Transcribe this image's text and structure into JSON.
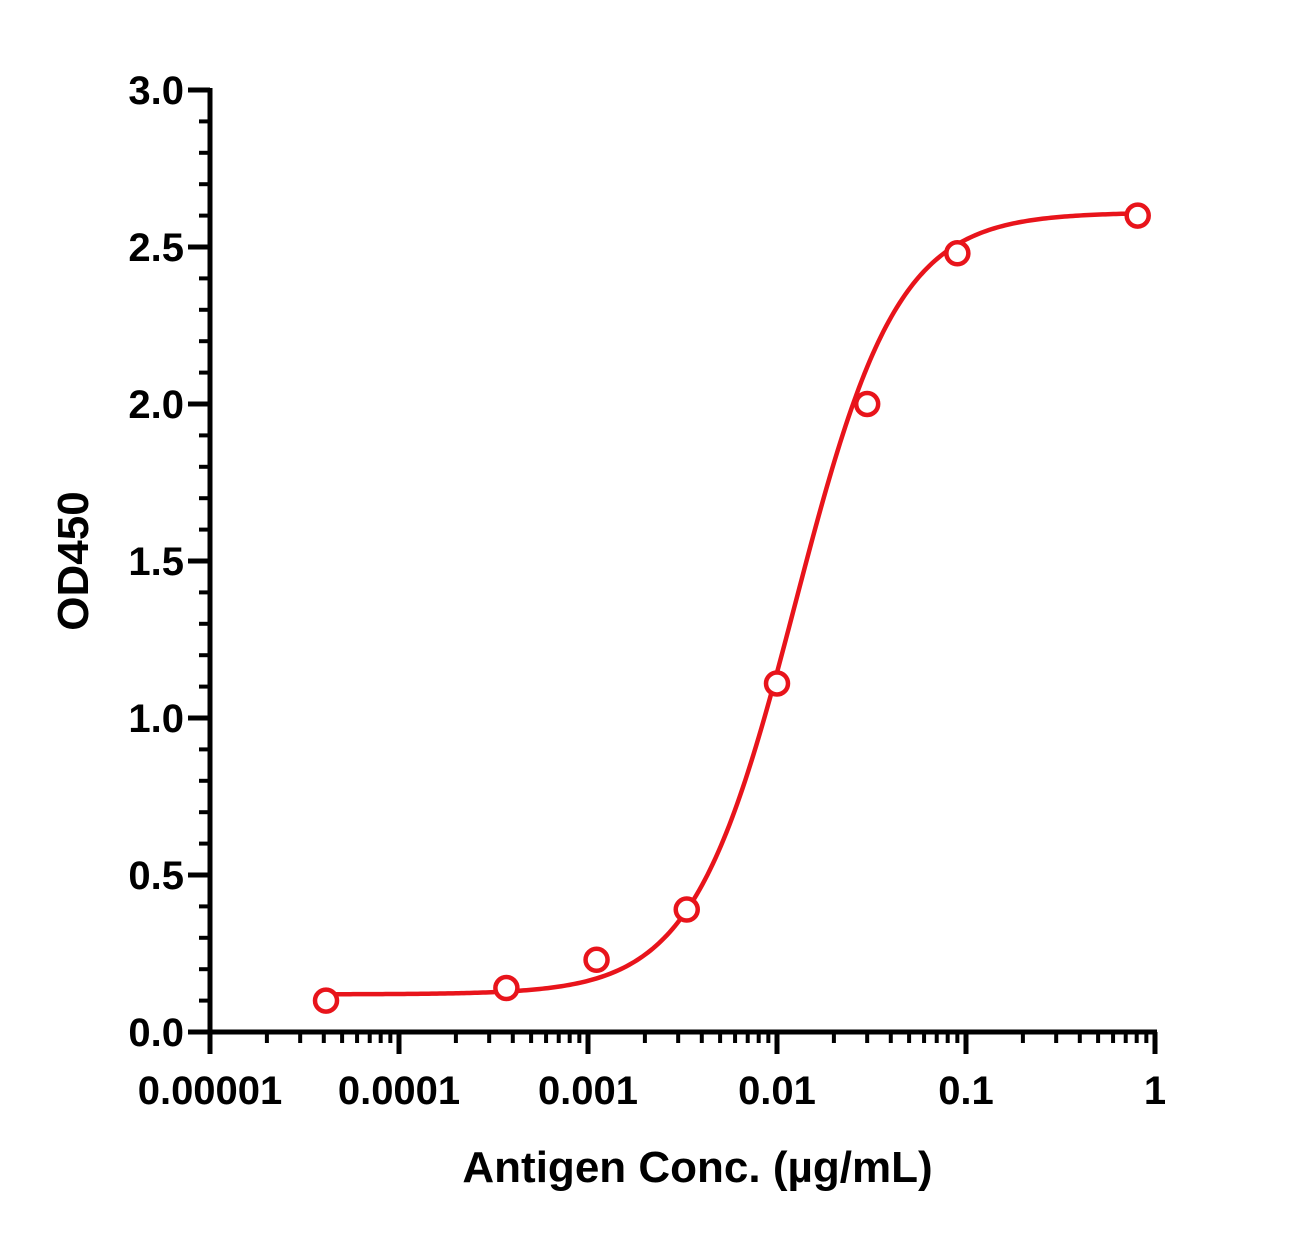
{
  "chart_data": {
    "type": "scatter",
    "title": "",
    "xlabel": "Antigen Conc. (µg/mL)",
    "ylabel": "OD450",
    "x_scale": "log",
    "xlim": [
      1e-05,
      1
    ],
    "ylim": [
      0,
      3.0
    ],
    "x_ticks": [
      {
        "value": 1e-05,
        "label": "0.00001"
      },
      {
        "value": 0.0001,
        "label": "0.0001"
      },
      {
        "value": 0.001,
        "label": "0.001"
      },
      {
        "value": 0.01,
        "label": "0.01"
      },
      {
        "value": 0.1,
        "label": "0.1"
      },
      {
        "value": 1,
        "label": "1"
      }
    ],
    "y_ticks": [
      {
        "value": 0,
        "label": "0.0"
      },
      {
        "value": 0.5,
        "label": "0.5"
      },
      {
        "value": 1.0,
        "label": "1.0"
      },
      {
        "value": 1.5,
        "label": "1.5"
      },
      {
        "value": 2.0,
        "label": "2.0"
      },
      {
        "value": 2.5,
        "label": "2.5"
      },
      {
        "value": 3.0,
        "label": "3.0"
      }
    ],
    "grid": false,
    "legend": "none",
    "color": "#e8141b",
    "series": [
      {
        "points": [
          {
            "x": 4.11e-05,
            "y": 0.1
          },
          {
            "x": 0.00037,
            "y": 0.14
          },
          {
            "x": 0.00111,
            "y": 0.23
          },
          {
            "x": 0.00333,
            "y": 0.39
          },
          {
            "x": 0.01,
            "y": 1.11
          },
          {
            "x": 0.03,
            "y": 2.0
          },
          {
            "x": 0.09,
            "y": 2.48
          },
          {
            "x": 0.81,
            "y": 2.6
          }
        ],
        "fit": {
          "model": "4PL",
          "bottom": 0.12,
          "top": 2.61,
          "ec50": 0.0125,
          "hill": 1.6
        }
      }
    ]
  }
}
